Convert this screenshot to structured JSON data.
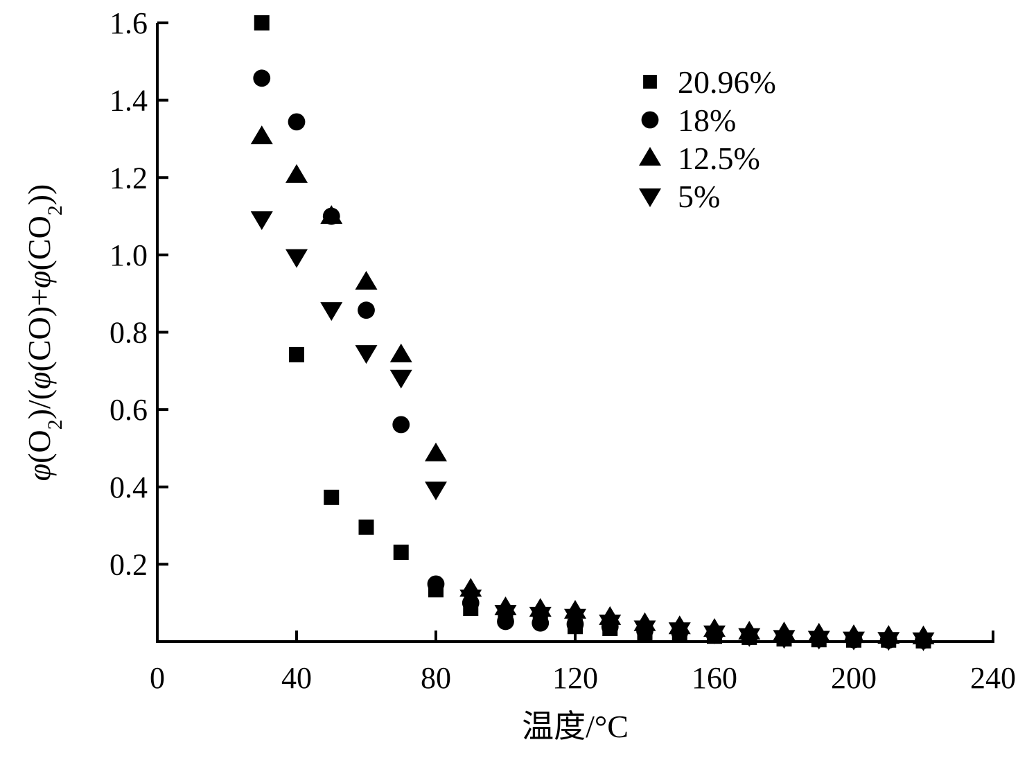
{
  "chart_data": {
    "type": "scatter",
    "title": "",
    "xlabel": "温度/°C",
    "ylabel": "φ(O2)/(φ(CO)+φ(CO2))",
    "ylabel_parts": {
      "phi": "φ",
      "o": "(O",
      "sub1": "2",
      "mid": ")/(",
      "phi2": "φ",
      "co": "(CO)+",
      "phi3": "φ",
      "co2": "(CO",
      "sub2": "2",
      "end": "))"
    },
    "xlim": [
      0,
      240
    ],
    "ylim": [
      0,
      1.6
    ],
    "x_ticks": [
      0,
      40,
      80,
      120,
      160,
      200,
      240
    ],
    "x_tick_labels": [
      "0",
      "40",
      "80",
      "120",
      "160",
      "200",
      "240"
    ],
    "y_ticks": [
      0.2,
      0.4,
      0.6,
      0.8,
      1.0,
      1.2,
      1.4,
      1.6
    ],
    "y_tick_labels": [
      "0.2",
      "0.4",
      "0.6",
      "0.8",
      "1.0",
      "1.2",
      "1.4",
      "1.6"
    ],
    "grid": false,
    "legend_position": "upper right (inside)",
    "x": [
      30,
      40,
      50,
      60,
      70,
      80,
      90,
      100,
      110,
      120,
      130,
      140,
      150,
      160,
      170,
      180,
      190,
      200,
      210,
      220
    ],
    "series": [
      {
        "name": "20.96%",
        "marker": "square",
        "color": "#000000",
        "values": [
          1.6,
          0.742,
          0.373,
          0.296,
          0.231,
          0.134,
          0.086,
          0.068,
          0.059,
          0.039,
          0.034,
          0.022,
          0.02,
          0.014,
          0.011,
          0.007,
          0.005,
          0.004,
          0.004,
          0.002
        ]
      },
      {
        "name": "18%",
        "marker": "circle",
        "color": "#000000",
        "values": [
          1.457,
          1.344,
          1.1,
          0.857,
          0.561,
          0.149,
          0.1,
          0.052,
          0.048,
          0.045,
          0.038,
          0.028,
          0.024,
          0.018,
          0.013,
          0.009,
          0.007,
          0.005,
          0.004,
          0.003
        ]
      },
      {
        "name": "12.5%",
        "marker": "triangle-up",
        "color": "#000000",
        "values": [
          1.306,
          1.206,
          1.1,
          0.93,
          0.742,
          0.486,
          0.136,
          0.088,
          0.084,
          0.079,
          0.063,
          0.047,
          0.039,
          0.032,
          0.025,
          0.023,
          0.02,
          0.016,
          0.014,
          0.013
        ]
      },
      {
        "name": "5%",
        "marker": "triangle-down",
        "color": "#000000",
        "values": [
          1.093,
          0.995,
          0.858,
          0.747,
          0.683,
          0.394,
          0.115,
          0.075,
          0.07,
          0.065,
          0.05,
          0.035,
          0.03,
          0.022,
          0.015,
          0.01,
          0.008,
          0.006,
          0.005,
          0.004
        ]
      }
    ]
  },
  "legend": {
    "items": [
      {
        "label": "20.96%",
        "marker": "square"
      },
      {
        "label": "18%",
        "marker": "circle"
      },
      {
        "label": "12.5%",
        "marker": "triangle-up"
      },
      {
        "label": "5%",
        "marker": "triangle-down"
      }
    ]
  }
}
